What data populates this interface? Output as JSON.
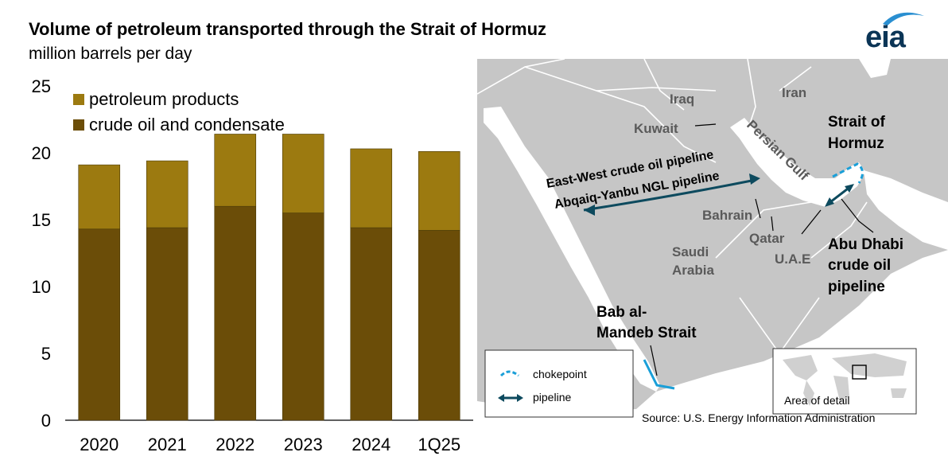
{
  "header": {
    "title": "Volume of petroleum transported through the Strait of Hormuz",
    "subtitle": "million barrels per day",
    "logo": "eia"
  },
  "chart_data": {
    "type": "bar",
    "stacked": true,
    "categories": [
      "2020",
      "2021",
      "2022",
      "2023",
      "2024",
      "1Q25"
    ],
    "series": [
      {
        "name": "crude oil and condensate",
        "color": "#6b4d08",
        "values": [
          14.3,
          14.4,
          16.0,
          15.5,
          14.4,
          14.2
        ]
      },
      {
        "name": "petroleum products",
        "color": "#9c7a10",
        "values": [
          4.8,
          5.0,
          5.4,
          5.9,
          5.9,
          5.9
        ]
      }
    ],
    "ylim": [
      0,
      25
    ],
    "yticks": [
      0,
      5,
      10,
      15,
      20,
      25
    ],
    "legend_position": "top-left",
    "grid": false
  },
  "map": {
    "countries": [
      "Iraq",
      "Iran",
      "Kuwait",
      "Bahrain",
      "Qatar",
      "U.A.E",
      "Saudi",
      "Arabia"
    ],
    "water": "Persian Gulf",
    "callouts": {
      "hormuz_1": "Strait of",
      "hormuz_2": "Hormuz",
      "abu_1": "Abu Dhabi",
      "abu_2": "crude oil",
      "abu_3": "pipeline",
      "bab_1": "Bab al-",
      "bab_2": "Mandeb Strait",
      "ew_pipeline": "East-West crude oil pipeline",
      "ay_pipeline": "Abqaiq-Yanbu NGL pipeline"
    },
    "legend": {
      "chokepoint": "chokepoint",
      "pipeline": "pipeline"
    },
    "inset_label": "Area of detail",
    "source": "Source: U.S. Energy Information Administration",
    "colors": {
      "land": "#c6c6c6",
      "water": "#ffffff",
      "chokepoint": "#1a9fd8",
      "pipeline": "#0d4a5e",
      "label": "#5a5a5a"
    }
  }
}
